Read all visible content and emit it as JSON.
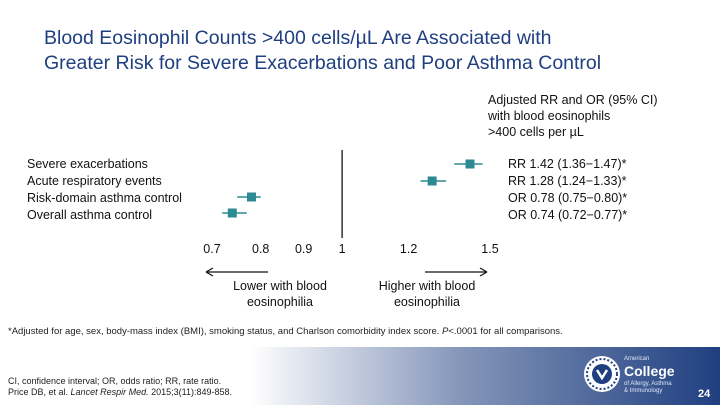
{
  "slide": {
    "title_lines": [
      "Blood Eosinophil Counts >400 cells/µL Are Associated with",
      "Greater Risk for Severe Exacerbations and Poor Asthma Control"
    ],
    "header_note_lines": [
      "Adjusted RR and OR (95% CI)",
      "with blood eosinophils",
      ">400 cells per µL"
    ],
    "direction_lower_lines": [
      "Lower with blood",
      "eosinophilia"
    ],
    "direction_higher_lines": [
      "Higher with blood",
      "eosinophilia"
    ],
    "footnote_parts": {
      "main": "*Adjusted for age, sex, body-mass index (BMI), smoking status, and Charlson comorbidity index score.",
      "p_letter": "P",
      "p_rest": "<.0001 for all comparisons."
    },
    "abbrev_line": "CI, confidence interval; OR, odds ratio; RR, rate ratio.",
    "citation": {
      "authors": "Price DB, et al.",
      "journal": "Lancet Respir Med.",
      "details": "2015;3(11):849-858."
    },
    "logo": {
      "top": "American",
      "main": "College",
      "sub_lines": [
        "of Allergy, Asthma",
        "& Immunology"
      ]
    },
    "page_number": "24",
    "colors": {
      "title": "#1f3f80",
      "marker": "#2e8a92",
      "footer": "#1f3f80"
    }
  },
  "chart_data": {
    "type": "forest",
    "x_scale": "log",
    "reference_line": 1,
    "xticks": [
      0.7,
      0.8,
      0.9,
      1,
      1.2,
      1.5
    ],
    "xtick_labels": [
      "0.7",
      "0.8",
      "0.9",
      "1",
      "1.2",
      "1.5"
    ],
    "rows": [
      {
        "label": "Severe exacerbations",
        "estimate": 1.42,
        "ci_low": 1.36,
        "ci_high": 1.47,
        "text": "RR 1.42 (1.36−1.47)*"
      },
      {
        "label": "Acute respiratory events",
        "estimate": 1.28,
        "ci_low": 1.24,
        "ci_high": 1.33,
        "text": "RR 1.28 (1.24−1.33)*"
      },
      {
        "label": "Risk-domain asthma control",
        "estimate": 0.78,
        "ci_low": 0.75,
        "ci_high": 0.8,
        "text": "OR 0.78 (0.75−0.80)*"
      },
      {
        "label": "Overall asthma control",
        "estimate": 0.74,
        "ci_low": 0.72,
        "ci_high": 0.77,
        "text": "OR 0.74 (0.72−0.77)*"
      }
    ]
  }
}
